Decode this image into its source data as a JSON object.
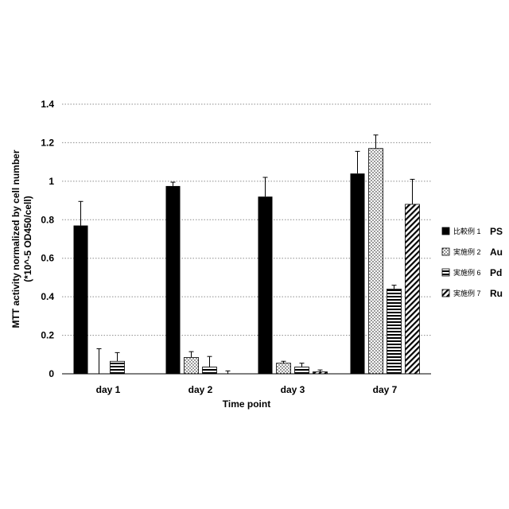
{
  "chart_data": {
    "type": "bar",
    "categories": [
      "day 1",
      "day 2",
      "day 3",
      "day 7"
    ],
    "series": [
      {
        "name": "比較例 1",
        "code": "PS",
        "pattern": "solid",
        "values": [
          0.77,
          0.975,
          0.92,
          1.04
        ],
        "errors": [
          0.125,
          0.02,
          0.1,
          0.115
        ]
      },
      {
        "name": "実施例 2",
        "code": "Au",
        "pattern": "dots",
        "values": [
          0.0,
          0.085,
          0.055,
          1.17
        ],
        "errors": [
          0.13,
          0.03,
          0.01,
          0.07
        ]
      },
      {
        "name": "実施例 6",
        "code": "Pd",
        "pattern": "hlines",
        "values": [
          0.065,
          0.035,
          0.035,
          0.44
        ],
        "errors": [
          0.045,
          0.055,
          0.02,
          0.02
        ]
      },
      {
        "name": "実施例 7",
        "code": "Ru",
        "pattern": "diag",
        "values": [
          0.0,
          0.0,
          0.01,
          0.88
        ],
        "errors": [
          0.0,
          0.015,
          0.01,
          0.13
        ]
      }
    ],
    "ylim": [
      0,
      1.4
    ],
    "yticks": [
      "0",
      "0.2",
      "0.4",
      "0.6",
      "0.8",
      "1",
      "1.2",
      "1.4"
    ],
    "ylabel_line1": "MTT activity normalized by cell number",
    "ylabel_line2": "(*10^-5 OD450/cell)",
    "xlabel": "Time point",
    "grid": "horizontal dotted",
    "legend_position": "right"
  }
}
